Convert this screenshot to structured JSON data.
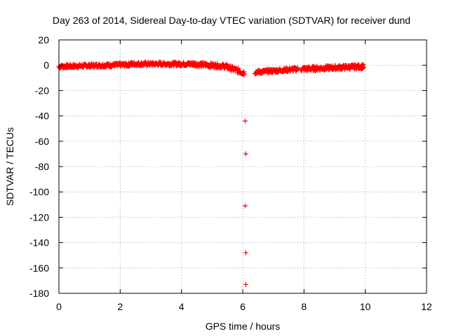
{
  "chart_data": {
    "type": "scatter",
    "title": "Day 263 of 2014, Sidereal Day-to-day VTEC variation (SDTVAR) for receiver dund",
    "xlabel": "GPS time / hours",
    "ylabel": "SDTVAR / TECUs",
    "xlim": [
      0,
      12
    ],
    "ylim": [
      -180,
      20
    ],
    "xticks": [
      0,
      2,
      4,
      6,
      8,
      10,
      12
    ],
    "yticks": [
      20,
      0,
      -20,
      -40,
      -60,
      -80,
      -100,
      -120,
      -140,
      -160,
      -180
    ],
    "grid": true,
    "marker": "+",
    "color": "#ff0000",
    "series": [
      {
        "name": "SDTVAR",
        "band_segments": [
          {
            "x_start": 0.0,
            "x_end": 2.3,
            "y_start": -1.0,
            "y_end": 0.5,
            "spread": 3.0
          },
          {
            "x_start": 2.3,
            "x_end": 4.4,
            "y_start": 1.0,
            "y_end": 1.0,
            "spread": 3.0
          },
          {
            "x_start": 4.4,
            "x_end": 5.5,
            "y_start": 1.0,
            "y_end": -1.0,
            "spread": 3.5
          },
          {
            "x_start": 5.5,
            "x_end": 6.05,
            "y_start": -1.5,
            "y_end": -6.0,
            "spread": 4.0
          },
          {
            "x_start": 6.4,
            "x_end": 7.8,
            "y_start": -5.5,
            "y_end": -3.0,
            "spread": 3.0
          },
          {
            "x_start": 7.9,
            "x_end": 9.95,
            "y_start": -3.0,
            "y_end": -1.0,
            "spread": 3.5
          }
        ],
        "outliers": [
          {
            "x": 6.08,
            "y": -44
          },
          {
            "x": 6.1,
            "y": -70
          },
          {
            "x": 6.08,
            "y": -111
          },
          {
            "x": 6.1,
            "y": -148
          },
          {
            "x": 6.1,
            "y": -173
          }
        ]
      }
    ]
  }
}
